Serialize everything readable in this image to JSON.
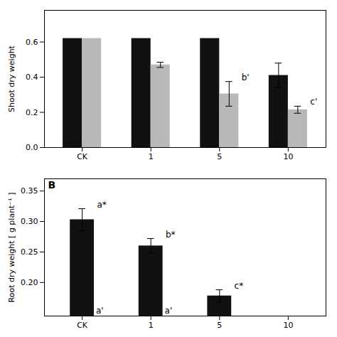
{
  "chart_data": [
    {
      "type": "bar",
      "categories": [
        "CK",
        "1",
        "5",
        "10"
      ],
      "series": [
        {
          "color": "#111111",
          "values": [
            0.62,
            0.62,
            0.62,
            0.41
          ],
          "errors": [
            0.0,
            0.0,
            0.0,
            0.07
          ]
        },
        {
          "color": "#b8b8b8",
          "values": [
            0.62,
            0.47,
            0.305,
            0.215
          ],
          "errors": [
            0.0,
            0.015,
            0.07,
            0.02
          ],
          "annotations": {
            "5": "b'",
            "10": "c'"
          }
        }
      ],
      "ylabel": "Shoot dry weight",
      "ylim": [
        0.0,
        0.78
      ],
      "yticks": [
        {
          "value": 0.0,
          "label": "0.0"
        },
        0.2,
        0.4,
        0.6
      ],
      "grid": false
    },
    {
      "type": "bar",
      "title": "B",
      "categories": [
        "CK",
        "1",
        "5",
        "10"
      ],
      "series": [
        {
          "color": "#111111",
          "values": [
            0.303,
            0.26,
            0.178,
            null
          ],
          "errors": [
            0.018,
            0.012,
            0.01,
            0
          ],
          "annotations": {
            "CK": "a*",
            "1": "b*",
            "5": "c*"
          }
        }
      ],
      "annotations": [
        {
          "category": "CK",
          "text": "a'"
        },
        {
          "category": "1",
          "text": "a'"
        }
      ],
      "ylabel": "Root dry weight [ g plant⁻¹ ]",
      "ylim": [
        0.145,
        0.37
      ],
      "yticks": [
        {
          "value": 0.2,
          "label": "0.20"
        },
        0.25,
        {
          "value": 0.3,
          "label": "0.30"
        },
        0.35
      ],
      "grid": false
    }
  ]
}
